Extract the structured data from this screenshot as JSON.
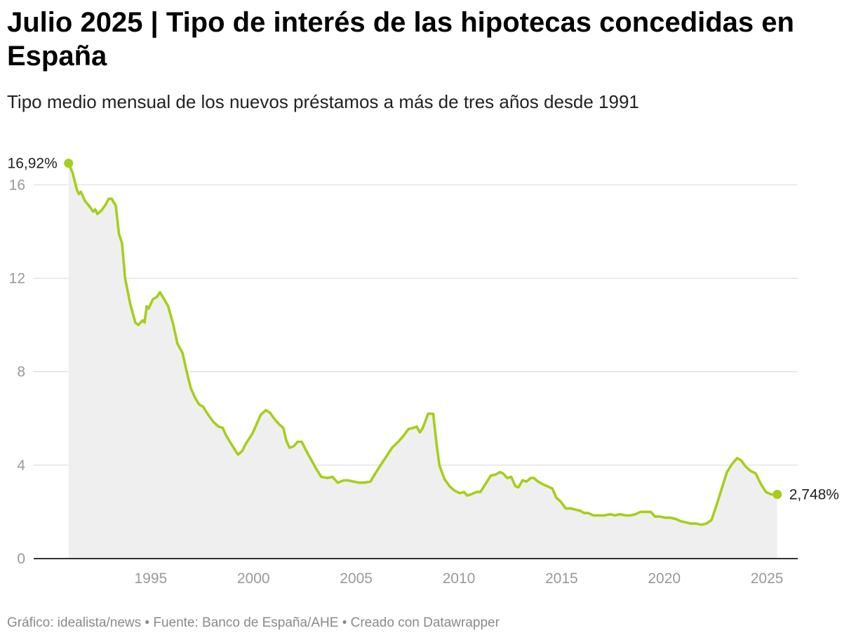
{
  "header": {
    "title": "Julio 2025 | Tipo de interés de las hipotecas concedidas en España",
    "subtitle": "Tipo medio mensual de los nuevos préstamos a más de tres años desde 1991"
  },
  "footer": {
    "credits": "Gráfico: idealista/news • Fuente: Banco de España/AHE • Creado con Datawrapper"
  },
  "chart_data": {
    "type": "area",
    "title": "Julio 2025 | Tipo de interés de las hipotecas concedidas en España",
    "subtitle": "Tipo medio mensual de los nuevos préstamos a más de tres años desde 1991",
    "xlabel": "",
    "ylabel": "",
    "xlim": [
      1989.3,
      2026.5
    ],
    "ylim": [
      0,
      17
    ],
    "x_ticks": [
      1995,
      2000,
      2005,
      2010,
      2015,
      2020,
      2025
    ],
    "y_ticks": [
      0,
      4,
      8,
      12,
      16
    ],
    "x_tick_labels": [
      "1995",
      "2000",
      "2005",
      "2010",
      "2015",
      "2020",
      "2025"
    ],
    "y_tick_labels": [
      "0",
      "4",
      "8",
      "12",
      "16"
    ],
    "grid": "horizontal",
    "colors": {
      "line": "#a6ce1a",
      "area": "#efefef",
      "grid": "#dedede",
      "axis": "#333333",
      "tick_text": "#999999"
    },
    "series": [
      {
        "values_unit": "%",
        "points": [
          [
            1991.0,
            16.92
          ],
          [
            1991.2,
            16.5
          ],
          [
            1991.4,
            15.8
          ],
          [
            1991.5,
            15.6
          ],
          [
            1991.6,
            15.7
          ],
          [
            1991.8,
            15.3
          ],
          [
            1992.0,
            15.1
          ],
          [
            1992.2,
            14.85
          ],
          [
            1992.3,
            14.95
          ],
          [
            1992.4,
            14.75
          ],
          [
            1992.6,
            14.9
          ],
          [
            1992.8,
            15.15
          ],
          [
            1992.95,
            15.4
          ],
          [
            1993.1,
            15.4
          ],
          [
            1993.3,
            15.1
          ],
          [
            1993.45,
            13.9
          ],
          [
            1993.6,
            13.5
          ],
          [
            1993.75,
            12.0
          ],
          [
            1994.0,
            10.9
          ],
          [
            1994.25,
            10.1
          ],
          [
            1994.4,
            10.0
          ],
          [
            1994.6,
            10.2
          ],
          [
            1994.7,
            10.1
          ],
          [
            1994.8,
            10.8
          ],
          [
            1994.9,
            10.7
          ],
          [
            1995.1,
            11.1
          ],
          [
            1995.3,
            11.2
          ],
          [
            1995.45,
            11.4
          ],
          [
            1995.65,
            11.1
          ],
          [
            1995.85,
            10.8
          ],
          [
            1996.1,
            10.0
          ],
          [
            1996.3,
            9.2
          ],
          [
            1996.55,
            8.8
          ],
          [
            1996.75,
            8.0
          ],
          [
            1996.95,
            7.3
          ],
          [
            1997.15,
            6.9
          ],
          [
            1997.35,
            6.6
          ],
          [
            1997.55,
            6.5
          ],
          [
            1997.8,
            6.15
          ],
          [
            1998.05,
            5.85
          ],
          [
            1998.3,
            5.65
          ],
          [
            1998.5,
            5.6
          ],
          [
            1998.65,
            5.3
          ],
          [
            1998.85,
            5.0
          ],
          [
            1999.1,
            4.65
          ],
          [
            1999.25,
            4.45
          ],
          [
            1999.45,
            4.6
          ],
          [
            1999.65,
            4.95
          ],
          [
            1999.95,
            5.35
          ],
          [
            2000.15,
            5.75
          ],
          [
            2000.35,
            6.15
          ],
          [
            2000.6,
            6.35
          ],
          [
            2000.8,
            6.25
          ],
          [
            2001.0,
            6.0
          ],
          [
            2001.25,
            5.75
          ],
          [
            2001.45,
            5.6
          ],
          [
            2001.6,
            5.05
          ],
          [
            2001.75,
            4.75
          ],
          [
            2001.95,
            4.8
          ],
          [
            2002.15,
            5.0
          ],
          [
            2002.35,
            5.0
          ],
          [
            2002.55,
            4.65
          ],
          [
            2002.8,
            4.25
          ],
          [
            2003.05,
            3.85
          ],
          [
            2003.3,
            3.5
          ],
          [
            2003.6,
            3.45
          ],
          [
            2003.85,
            3.5
          ],
          [
            2004.1,
            3.25
          ],
          [
            2004.4,
            3.35
          ],
          [
            2004.6,
            3.35
          ],
          [
            2004.85,
            3.3
          ],
          [
            2005.15,
            3.25
          ],
          [
            2005.4,
            3.25
          ],
          [
            2005.7,
            3.3
          ],
          [
            2005.9,
            3.6
          ],
          [
            2006.15,
            3.95
          ],
          [
            2006.45,
            4.35
          ],
          [
            2006.75,
            4.75
          ],
          [
            2007.05,
            5.0
          ],
          [
            2007.3,
            5.25
          ],
          [
            2007.55,
            5.55
          ],
          [
            2007.8,
            5.6
          ],
          [
            2007.95,
            5.65
          ],
          [
            2008.1,
            5.4
          ],
          [
            2008.25,
            5.6
          ],
          [
            2008.5,
            6.2
          ],
          [
            2008.75,
            6.2
          ],
          [
            2008.9,
            5.0
          ],
          [
            2009.05,
            4.0
          ],
          [
            2009.3,
            3.4
          ],
          [
            2009.55,
            3.1
          ],
          [
            2009.8,
            2.9
          ],
          [
            2010.05,
            2.8
          ],
          [
            2010.25,
            2.85
          ],
          [
            2010.4,
            2.7
          ],
          [
            2010.6,
            2.75
          ],
          [
            2010.85,
            2.85
          ],
          [
            2011.05,
            2.85
          ],
          [
            2011.3,
            3.2
          ],
          [
            2011.55,
            3.55
          ],
          [
            2011.8,
            3.6
          ],
          [
            2012.0,
            3.7
          ],
          [
            2012.15,
            3.65
          ],
          [
            2012.35,
            3.45
          ],
          [
            2012.55,
            3.5
          ],
          [
            2012.75,
            3.1
          ],
          [
            2012.9,
            3.05
          ],
          [
            2013.1,
            3.35
          ],
          [
            2013.3,
            3.3
          ],
          [
            2013.5,
            3.45
          ],
          [
            2013.65,
            3.45
          ],
          [
            2013.85,
            3.3
          ],
          [
            2014.05,
            3.2
          ],
          [
            2014.3,
            3.1
          ],
          [
            2014.55,
            3.0
          ],
          [
            2014.75,
            2.6
          ],
          [
            2014.95,
            2.45
          ],
          [
            2015.2,
            2.15
          ],
          [
            2015.45,
            2.15
          ],
          [
            2015.65,
            2.1
          ],
          [
            2015.9,
            2.05
          ],
          [
            2016.1,
            1.95
          ],
          [
            2016.3,
            1.95
          ],
          [
            2016.55,
            1.85
          ],
          [
            2016.8,
            1.85
          ],
          [
            2017.1,
            1.85
          ],
          [
            2017.35,
            1.9
          ],
          [
            2017.6,
            1.85
          ],
          [
            2017.85,
            1.9
          ],
          [
            2018.1,
            1.85
          ],
          [
            2018.35,
            1.85
          ],
          [
            2018.6,
            1.9
          ],
          [
            2018.85,
            2.0
          ],
          [
            2019.1,
            2.0
          ],
          [
            2019.35,
            2.0
          ],
          [
            2019.55,
            1.8
          ],
          [
            2019.8,
            1.8
          ],
          [
            2020.05,
            1.75
          ],
          [
            2020.3,
            1.75
          ],
          [
            2020.55,
            1.7
          ],
          [
            2020.8,
            1.6
          ],
          [
            2021.05,
            1.55
          ],
          [
            2021.3,
            1.5
          ],
          [
            2021.55,
            1.5
          ],
          [
            2021.8,
            1.45
          ],
          [
            2022.05,
            1.5
          ],
          [
            2022.3,
            1.65
          ],
          [
            2022.55,
            2.3
          ],
          [
            2022.8,
            3.0
          ],
          [
            2023.05,
            3.7
          ],
          [
            2023.3,
            4.05
          ],
          [
            2023.55,
            4.3
          ],
          [
            2023.75,
            4.2
          ],
          [
            2023.95,
            3.95
          ],
          [
            2024.2,
            3.75
          ],
          [
            2024.45,
            3.65
          ],
          [
            2024.7,
            3.2
          ],
          [
            2024.95,
            2.85
          ],
          [
            2025.2,
            2.75
          ],
          [
            2025.5,
            2.748
          ]
        ]
      }
    ],
    "annotations": [
      {
        "label": "16,92%",
        "x": 1991.0,
        "y": 16.92
      },
      {
        "label": "2,748%",
        "x": 2025.5,
        "y": 2.748
      }
    ]
  }
}
